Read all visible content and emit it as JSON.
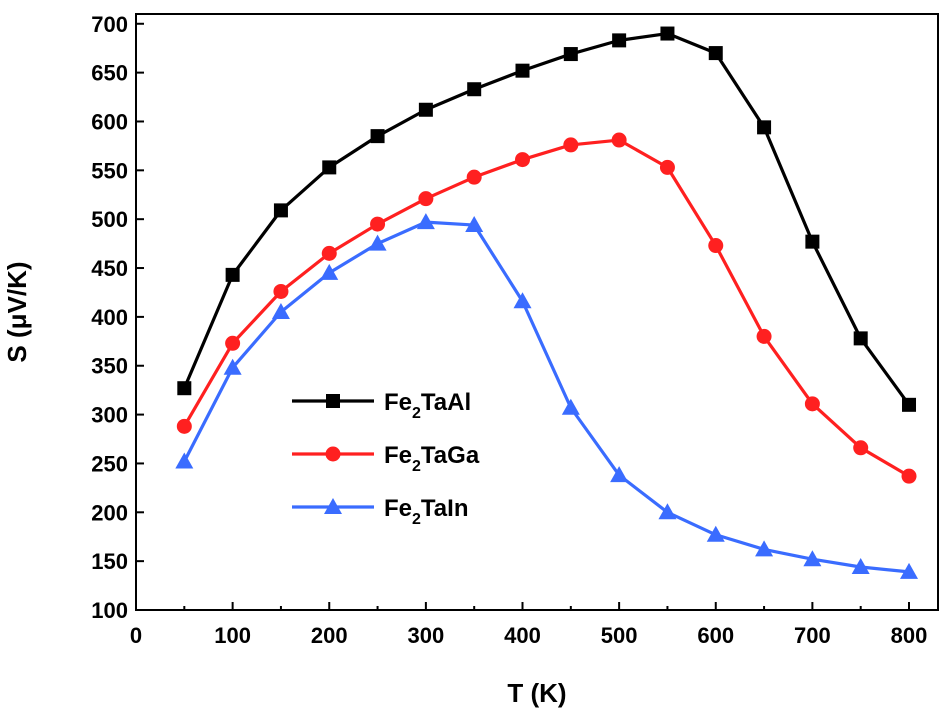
{
  "chart_data": {
    "type": "line",
    "xlabel": "T (K)",
    "ylabel": "S (μV/K)",
    "xlim": [
      0,
      830
    ],
    "ylim": [
      100,
      710
    ],
    "xticks": [
      0,
      100,
      200,
      300,
      400,
      500,
      600,
      700,
      800
    ],
    "yticks": [
      100,
      150,
      200,
      250,
      300,
      350,
      400,
      450,
      500,
      550,
      600,
      650,
      700
    ],
    "x": [
      50,
      100,
      150,
      200,
      250,
      300,
      350,
      400,
      450,
      500,
      550,
      600,
      650,
      700,
      750,
      800
    ],
    "legend_position": "center-left",
    "grid": false,
    "series": [
      {
        "name": "Fe2TaAl",
        "legend_main": "Fe",
        "legend_sub": "2",
        "legend_rest": "TaAl",
        "color": "#000000",
        "marker": "square",
        "values": [
          327,
          443,
          509,
          553,
          585,
          612,
          633,
          652,
          669,
          683,
          690,
          670,
          594,
          477,
          378,
          310
        ]
      },
      {
        "name": "Fe2TaGa",
        "legend_main": "Fe",
        "legend_sub": "2",
        "legend_rest": "TaGa",
        "color": "#ff2020",
        "marker": "circle",
        "values": [
          288,
          373,
          426,
          465,
          495,
          521,
          543,
          561,
          576,
          581,
          553,
          473,
          380,
          311,
          266,
          237
        ]
      },
      {
        "name": "Fe2TaIn",
        "legend_main": "Fe",
        "legend_sub": "2",
        "legend_rest": "TaIn",
        "color": "#3a6cff",
        "marker": "triangle",
        "values": [
          252,
          348,
          405,
          445,
          475,
          497,
          494,
          416,
          307,
          238,
          200,
          177,
          162,
          152,
          144,
          139
        ]
      }
    ]
  }
}
